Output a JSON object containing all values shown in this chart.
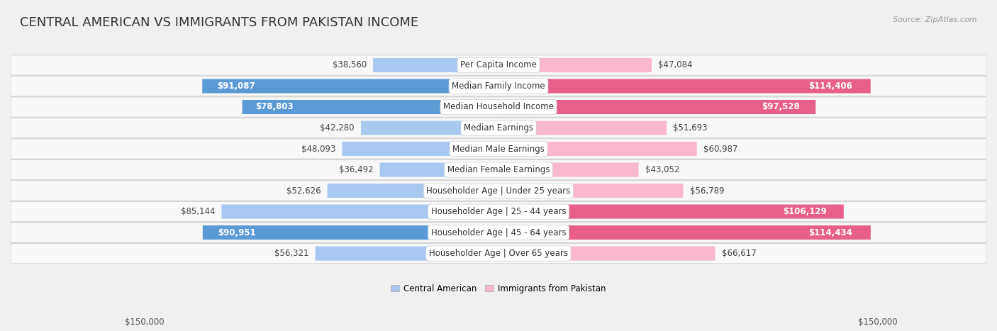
{
  "title": "CENTRAL AMERICAN VS IMMIGRANTS FROM PAKISTAN INCOME",
  "source": "Source: ZipAtlas.com",
  "categories": [
    "Per Capita Income",
    "Median Family Income",
    "Median Household Income",
    "Median Earnings",
    "Median Male Earnings",
    "Median Female Earnings",
    "Householder Age | Under 25 years",
    "Householder Age | 25 - 44 years",
    "Householder Age | 45 - 64 years",
    "Householder Age | Over 65 years"
  ],
  "left_values": [
    38560,
    91087,
    78803,
    42280,
    48093,
    36492,
    52626,
    85144,
    90951,
    56321
  ],
  "right_values": [
    47084,
    114406,
    97528,
    51693,
    60987,
    43052,
    56789,
    106129,
    114434,
    66617
  ],
  "left_labels": [
    "$38,560",
    "$91,087",
    "$78,803",
    "$42,280",
    "$48,093",
    "$36,492",
    "$52,626",
    "$85,144",
    "$90,951",
    "$56,321"
  ],
  "right_labels": [
    "$47,084",
    "$114,406",
    "$97,528",
    "$51,693",
    "$60,987",
    "$43,052",
    "$56,789",
    "$106,129",
    "$114,434",
    "$66,617"
  ],
  "left_color_light": "#a8c8f0",
  "left_color_dark": "#5b9bd5",
  "right_color_light": "#f9b8ce",
  "right_color_dark": "#e8608a",
  "left_label_inside": [
    false,
    true,
    true,
    false,
    false,
    false,
    false,
    false,
    true,
    false
  ],
  "right_label_inside": [
    false,
    true,
    true,
    false,
    false,
    false,
    false,
    true,
    true,
    false
  ],
  "max_value": 150000,
  "left_legend": "Central American",
  "right_legend": "Immigrants from Pakistan",
  "background_color": "#f0f0f0",
  "row_bg_color": "#ffffff",
  "title_fontsize": 13,
  "value_fontsize": 8.5,
  "cat_fontsize": 8.5,
  "source_fontsize": 8
}
